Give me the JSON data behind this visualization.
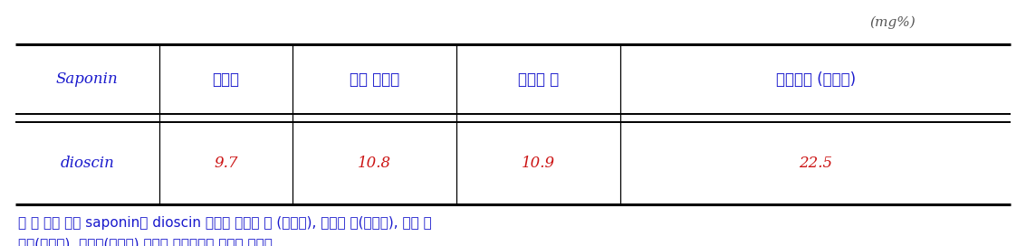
{
  "unit_label": "(mg%)",
  "col_headers": [
    "Saponin",
    "서동마",
    "정읍 산내마",
    "금산사 마",
    "강원도마 (야생마)"
  ],
  "row_data": [
    [
      "dioscin",
      "9.7",
      "10.8",
      "10.9",
      "22.5"
    ]
  ],
  "footnote_line1": "－ 마 함유 주요 saponin인 dioscin 함량은 강원도 마 (야생마), 금산사 마(야생마), 정읍 산",
  "footnote_line2": "내마(재배마), 서동마(재배마) 순으로 야생마에서 함량이 높았다.",
  "bg_color": "#ffffff",
  "header_text_color": "#1a1acd",
  "data_value_color": "#cc1414",
  "data_label_color": "#1a1acd",
  "footnote_color": "#1a1acd",
  "unit_color": "#555555",
  "font_size": 12,
  "unit_font_size": 11,
  "footnote_font_size": 11
}
